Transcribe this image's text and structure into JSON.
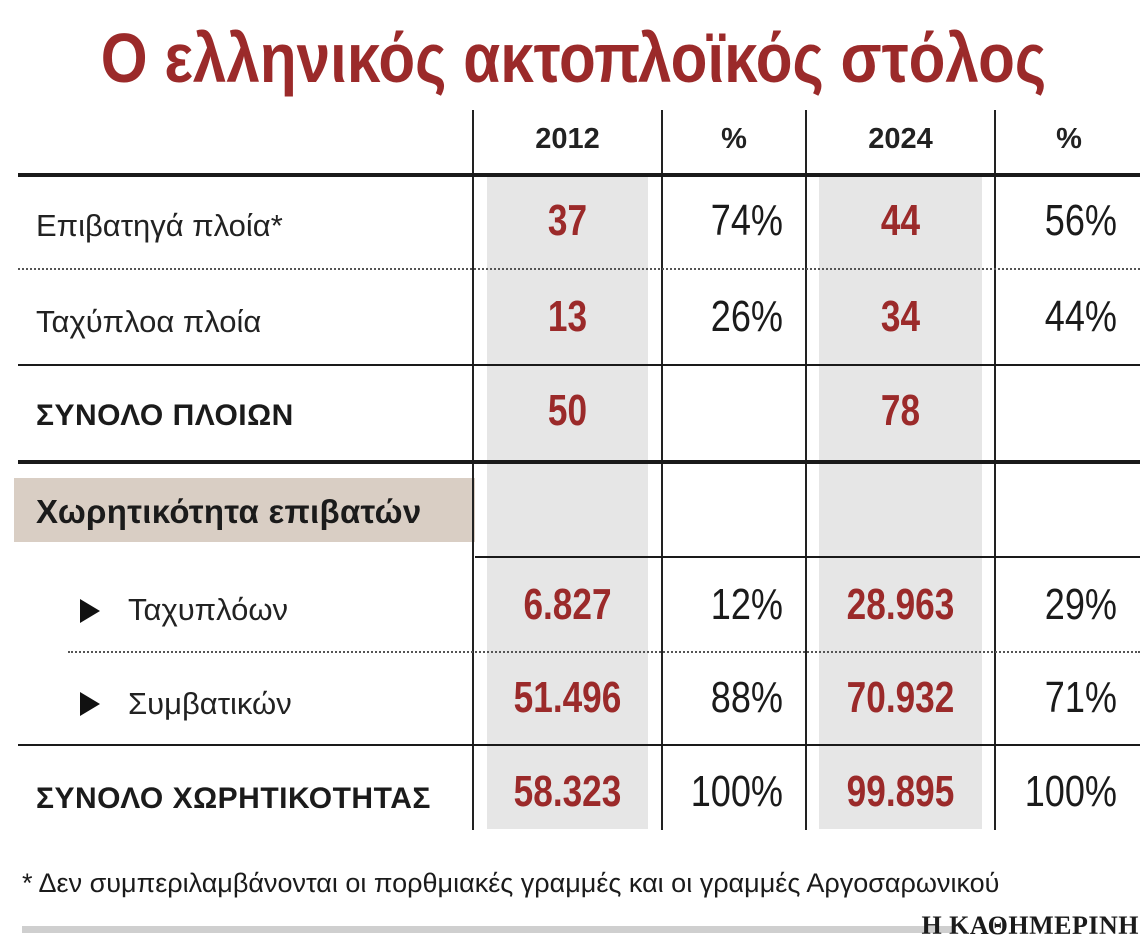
{
  "title": "Ο ελληνικός ακτοπλοϊκός στόλος",
  "columns": [
    "2012",
    "%",
    "2024",
    "%"
  ],
  "rows": {
    "passenger": {
      "label": "Επιβατηγά πλοία*",
      "v2012": "37",
      "p2012": "74%",
      "v2024": "44",
      "p2024": "56%"
    },
    "fast": {
      "label": "Ταχύπλοα πλοία",
      "v2012": "13",
      "p2012": "26%",
      "v2024": "34",
      "p2024": "44%"
    },
    "total_ships": {
      "label": "ΣΥΝΟΛΟ ΠΛΟΙΩΝ",
      "v2012": "50",
      "v2024": "78"
    }
  },
  "capacity_section": "Χωρητικότητα επιβατών",
  "capacity": {
    "fast": {
      "label": "Ταχυπλόων",
      "v2012": "6.827",
      "p2012": "12%",
      "v2024": "28.963",
      "p2024": "29%"
    },
    "conventional": {
      "label": "Συμβατικών",
      "v2012": "51.496",
      "p2012": "88%",
      "v2024": "70.932",
      "p2024": "71%"
    },
    "total": {
      "label": "ΣΥΝΟΛΟ ΧΩΡΗΤΙΚΟΤΗΤΑΣ",
      "v2012": "58.323",
      "p2012": "100%",
      "v2024": "99.895",
      "p2024": "100%"
    }
  },
  "footnote": "* Δεν συμπεριλαμβάνονται οι πορθμιακές γραμμές και οι γραμμές Αργοσαρωνικού",
  "source": "Η ΚΑΘΗΜΕΡΙΝΗ",
  "colors": {
    "accent": "#9b2a2a",
    "shade": "#e6e6e6",
    "band": "#d9cec4"
  }
}
